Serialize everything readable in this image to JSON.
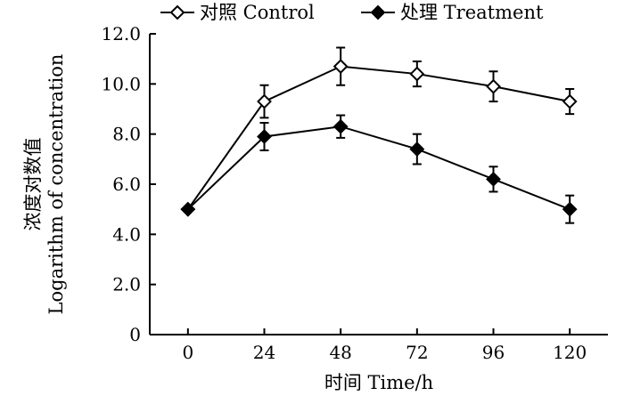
{
  "chart_data": {
    "type": "line",
    "title": "",
    "xlabel": "时间 Time/h",
    "ylabel_cn": "浓度对数值",
    "ylabel_en": "Logarithm of concentration",
    "x": [
      0,
      24,
      48,
      72,
      96,
      120
    ],
    "x_tick_labels": [
      "0",
      "24",
      "48",
      "72",
      "96",
      "120"
    ],
    "y_ticks": [
      0,
      2,
      4,
      6,
      8,
      10,
      12
    ],
    "y_tick_labels": [
      "0",
      "2.0",
      "4.0",
      "6.0",
      "8.0",
      "10.0",
      "12.0"
    ],
    "xlim": [
      -12,
      132
    ],
    "ylim": [
      0,
      12
    ],
    "grid": false,
    "legend_position": "top",
    "series": [
      {
        "name": "对照 Control",
        "marker": "open-diamond",
        "color": "#000000",
        "values": [
          5.0,
          9.3,
          10.7,
          10.4,
          9.9,
          9.3
        ],
        "errors": [
          0.0,
          0.65,
          0.75,
          0.5,
          0.6,
          0.5
        ]
      },
      {
        "name": "处理 Treatment",
        "marker": "filled-diamond",
        "color": "#000000",
        "values": [
          5.0,
          7.9,
          8.3,
          7.4,
          6.2,
          5.0
        ],
        "errors": [
          0.0,
          0.55,
          0.45,
          0.6,
          0.5,
          0.55
        ]
      }
    ]
  }
}
